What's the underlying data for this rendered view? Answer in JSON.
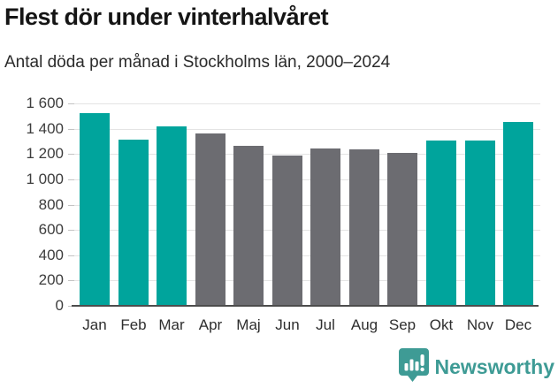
{
  "header": {
    "title": "Flest dör under vinterhalvåret",
    "subtitle": "Antal döda per månad i Stockholms län, 2000–2024"
  },
  "chart_data": {
    "type": "bar",
    "title": "Flest dör under vinterhalvåret",
    "subtitle": "Antal döda per månad i Stockholms län, 2000–2024",
    "categories": [
      "Jan",
      "Feb",
      "Mar",
      "Apr",
      "Maj",
      "Jun",
      "Jul",
      "Aug",
      "Sep",
      "Okt",
      "Nov",
      "Dec"
    ],
    "values": [
      1520,
      1315,
      1415,
      1360,
      1265,
      1190,
      1245,
      1235,
      1210,
      1305,
      1305,
      1450
    ],
    "bar_color_keys": [
      "teal",
      "teal",
      "teal",
      "gray",
      "gray",
      "gray",
      "gray",
      "gray",
      "gray",
      "teal",
      "teal",
      "teal"
    ],
    "colors": {
      "teal": "#00a49c",
      "gray": "#6c6c71"
    },
    "xlabel": "",
    "ylabel": "",
    "ylim": [
      0,
      1600
    ],
    "ytick_values": [
      0,
      200,
      400,
      600,
      800,
      1000,
      1200,
      1400,
      1600
    ],
    "ytick_labels": [
      "0",
      "200",
      "400",
      "600",
      "800",
      "1 000",
      "1 200",
      "1 400",
      "1 600"
    ],
    "grid": "horizontal",
    "legend": "none"
  },
  "logo": {
    "text": "Newsworthy",
    "color": "#3e9b95",
    "icon": "newsworthy-speech-bubble-bar-chart-icon"
  }
}
